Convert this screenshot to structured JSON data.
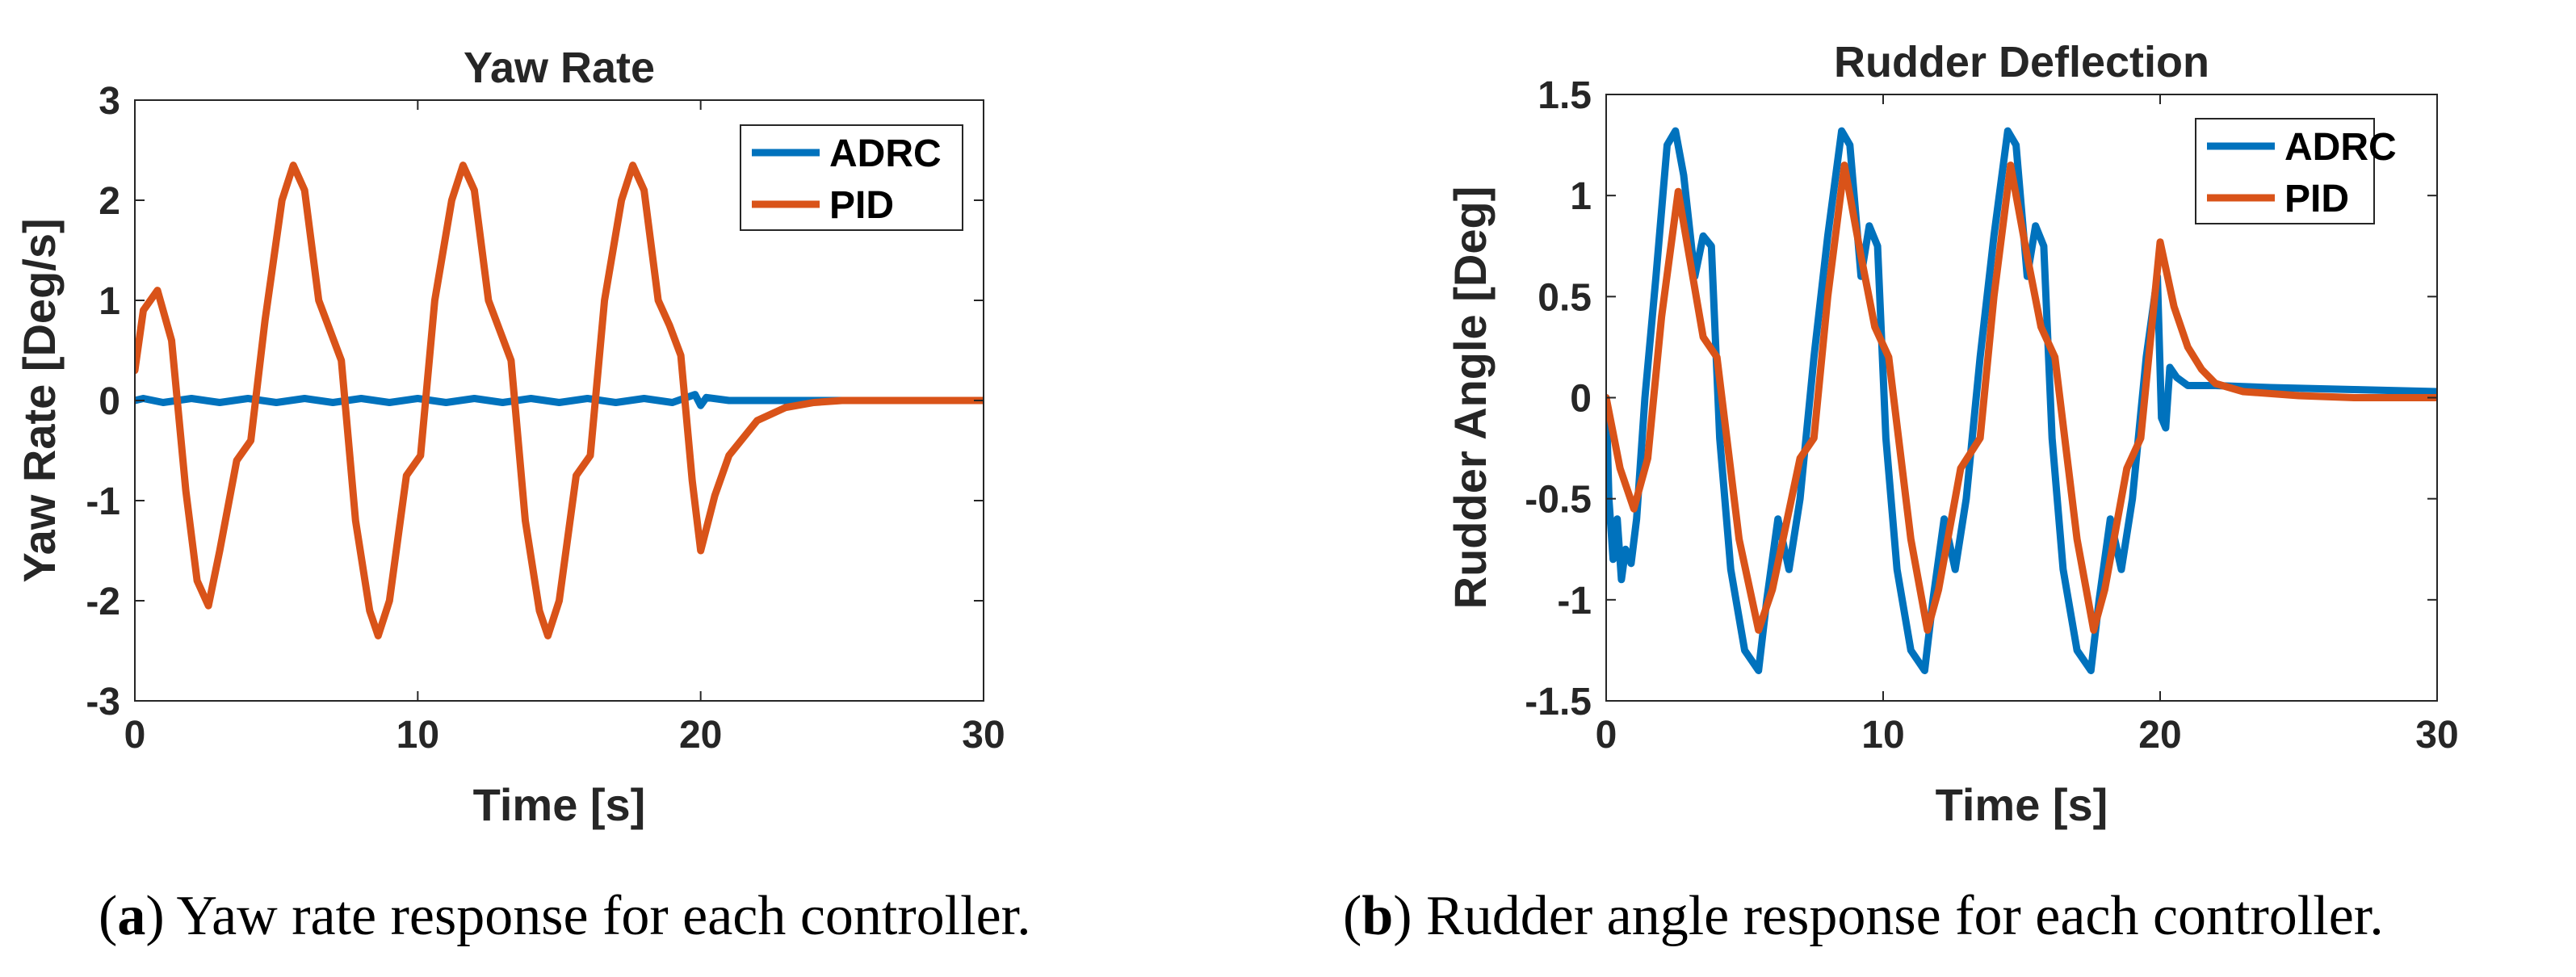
{
  "colors": {
    "adrc": "#0072BD",
    "pid": "#D95319",
    "axis": "#262626"
  },
  "captions": [
    {
      "label": "a",
      "text": " Yaw rate response for each controller."
    },
    {
      "label": "b",
      "text": " Rudder angle response for each controller."
    }
  ],
  "chart_data": [
    {
      "type": "line",
      "title": "Yaw Rate",
      "xlabel": "Time [s]",
      "ylabel": "Yaw Rate [Deg/s]",
      "xlim": [
        0,
        30
      ],
      "ylim": [
        -3,
        3
      ],
      "xticks": [
        0,
        10,
        20,
        30
      ],
      "yticks": [
        -3,
        -2,
        -1,
        0,
        1,
        2,
        3
      ],
      "legend_position": "top-right",
      "series": [
        {
          "name": "ADRC",
          "x": [
            0,
            0.3,
            1,
            2,
            3,
            4,
            5,
            6,
            7,
            8,
            9,
            10,
            11,
            12,
            13,
            14,
            15,
            16,
            17,
            18,
            19,
            19.8,
            20,
            20.2,
            21,
            25,
            30
          ],
          "y": [
            0,
            0.02,
            -0.02,
            0.02,
            -0.02,
            0.02,
            -0.02,
            0.02,
            -0.02,
            0.02,
            -0.02,
            0.02,
            -0.02,
            0.02,
            -0.02,
            0.02,
            -0.02,
            0.02,
            -0.02,
            0.02,
            -0.02,
            0.06,
            -0.05,
            0.03,
            0,
            0,
            0
          ]
        },
        {
          "name": "PID",
          "x": [
            0,
            0.3,
            0.8,
            1.3,
            1.8,
            2.2,
            2.6,
            3.0,
            3.6,
            4.1,
            4.6,
            5.2,
            5.6,
            6.0,
            6.5,
            6.9,
            7.3,
            7.8,
            8.3,
            8.6,
            9.0,
            9.6,
            10.1,
            10.6,
            11.2,
            11.6,
            12.0,
            12.5,
            12.9,
            13.3,
            13.8,
            14.3,
            14.6,
            15.0,
            15.6,
            16.1,
            16.6,
            17.2,
            17.6,
            18.0,
            18.5,
            18.9,
            19.3,
            19.7,
            20.0,
            20.5,
            21,
            22,
            23,
            24,
            25,
            27,
            30
          ],
          "y": [
            0.3,
            0.9,
            1.1,
            0.6,
            -0.9,
            -1.8,
            -2.05,
            -1.5,
            -0.6,
            -0.4,
            0.8,
            2.0,
            2.35,
            2.1,
            1.0,
            0.7,
            0.4,
            -1.2,
            -2.1,
            -2.35,
            -2.0,
            -0.75,
            -0.55,
            1.0,
            2.0,
            2.35,
            2.1,
            1.0,
            0.7,
            0.4,
            -1.2,
            -2.1,
            -2.35,
            -2.0,
            -0.75,
            -0.55,
            1.0,
            2.0,
            2.35,
            2.1,
            1.0,
            0.75,
            0.45,
            -0.8,
            -1.5,
            -0.95,
            -0.55,
            -0.2,
            -0.07,
            -0.02,
            0,
            0,
            0
          ]
        }
      ]
    },
    {
      "type": "line",
      "title": "Rudder Deflection",
      "xlabel": "Time [s]",
      "ylabel": "Rudder Angle [Deg]",
      "xlim": [
        0,
        30
      ],
      "ylim": [
        -1.5,
        1.5
      ],
      "xticks": [
        0,
        10,
        20,
        30
      ],
      "yticks": [
        -1.5,
        -1,
        -0.5,
        0,
        0.5,
        1,
        1.5
      ],
      "legend_position": "top-right",
      "series": [
        {
          "name": "ADRC",
          "x": [
            0,
            0.1,
            0.25,
            0.4,
            0.55,
            0.7,
            0.9,
            1.1,
            1.4,
            1.8,
            2.2,
            2.5,
            2.8,
            3.2,
            3.5,
            3.8,
            4.1,
            4.5,
            5.0,
            5.5,
            5.8,
            6.2,
            6.6,
            7.0,
            7.5,
            8.0,
            8.5,
            8.8,
            9.2,
            9.5,
            9.8,
            10.1,
            10.5,
            11.0,
            11.5,
            11.8,
            12.2,
            12.6,
            13.0,
            13.5,
            14.0,
            14.5,
            14.8,
            15.2,
            15.5,
            15.8,
            16.1,
            16.5,
            17.0,
            17.5,
            17.8,
            18.2,
            18.6,
            19.0,
            19.5,
            19.9,
            20.05,
            20.2,
            20.35,
            20.6,
            21,
            22,
            24,
            27,
            30
          ],
          "y": [
            0,
            -0.5,
            -0.8,
            -0.6,
            -0.9,
            -0.75,
            -0.82,
            -0.6,
            0,
            0.6,
            1.25,
            1.32,
            1.1,
            0.6,
            0.8,
            0.75,
            -0.2,
            -0.85,
            -1.25,
            -1.35,
            -1.0,
            -0.6,
            -0.85,
            -0.5,
            0.2,
            0.8,
            1.32,
            1.25,
            0.6,
            0.85,
            0.75,
            -0.2,
            -0.85,
            -1.25,
            -1.35,
            -1.0,
            -0.6,
            -0.85,
            -0.5,
            0.2,
            0.8,
            1.32,
            1.25,
            0.6,
            0.85,
            0.75,
            -0.2,
            -0.85,
            -1.25,
            -1.35,
            -1.0,
            -0.6,
            -0.85,
            -0.5,
            0.2,
            0.6,
            -0.1,
            -0.15,
            0.15,
            0.1,
            0.06,
            0.06,
            0.05,
            0.04,
            0.03
          ]
        },
        {
          "name": "PID",
          "x": [
            0,
            0.5,
            1.0,
            1.5,
            2.0,
            2.6,
            3.0,
            3.5,
            4.0,
            4.8,
            5.5,
            6.0,
            7.0,
            7.5,
            8.0,
            8.6,
            9.2,
            9.7,
            10.2,
            11.0,
            11.6,
            12.0,
            12.8,
            13.5,
            14.0,
            14.6,
            15.2,
            15.7,
            16.2,
            17.0,
            17.6,
            18.0,
            18.8,
            19.3,
            20.0,
            20.5,
            21.0,
            21.5,
            22.0,
            23,
            25,
            27,
            30
          ],
          "y": [
            0,
            -0.35,
            -0.55,
            -0.3,
            0.4,
            1.02,
            0.7,
            0.3,
            0.2,
            -0.7,
            -1.15,
            -0.95,
            -0.3,
            -0.2,
            0.5,
            1.15,
            0.7,
            0.35,
            0.2,
            -0.7,
            -1.15,
            -0.95,
            -0.35,
            -0.2,
            0.5,
            1.15,
            0.7,
            0.35,
            0.2,
            -0.7,
            -1.15,
            -0.95,
            -0.35,
            -0.2,
            0.77,
            0.45,
            0.25,
            0.14,
            0.07,
            0.03,
            0.01,
            0,
            0
          ]
        }
      ]
    }
  ]
}
